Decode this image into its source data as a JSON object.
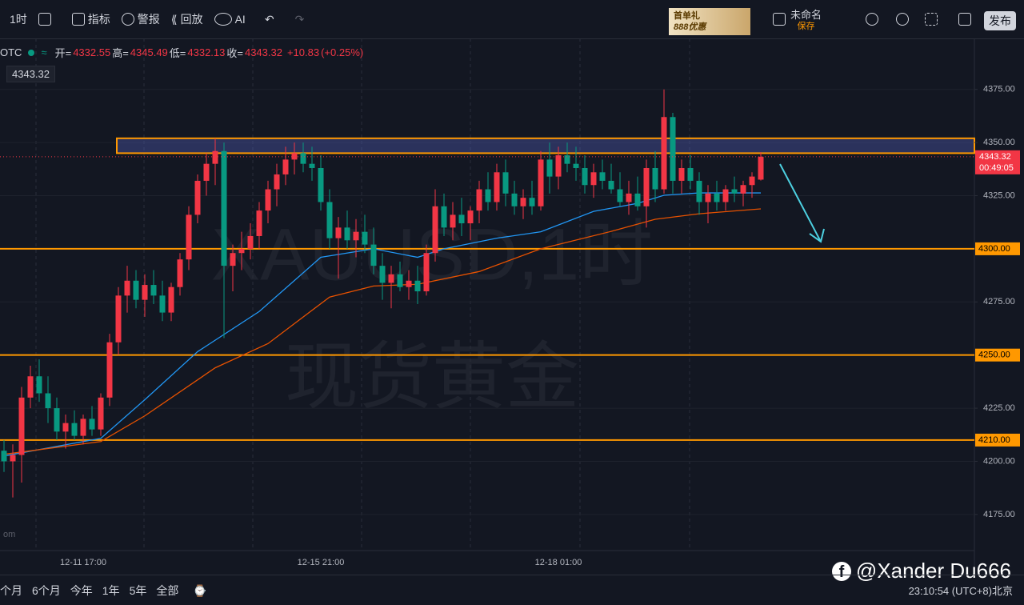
{
  "chart_data": {
    "type": "candlestick",
    "watermark": "XAUUSD,1时",
    "watermark_sub": "现货黄金",
    "symbol": "OTC",
    "legend": {
      "open_key": "开=",
      "high_key": "高=",
      "low_key": "低=",
      "close_key": "收=",
      "change": "+10.83",
      "change_pct": "(+0.25%)"
    },
    "up_color": "#f23645",
    "down_color": "#089981",
    "categories": [
      null,
      null,
      null,
      null,
      null,
      null,
      null,
      null,
      null,
      "12-11 17:00",
      null,
      null,
      null,
      null,
      null,
      null,
      null,
      null,
      null,
      null,
      null,
      null,
      null,
      null,
      null,
      null,
      null,
      null,
      null,
      null,
      null,
      null,
      null,
      null,
      null,
      null,
      "12-15 21:00",
      null,
      null,
      null,
      null,
      null,
      null,
      null,
      null,
      null,
      null,
      null,
      null,
      null,
      null,
      null,
      null,
      null,
      null,
      null,
      null,
      null,
      null,
      null,
      null,
      null,
      null,
      "12-18 01:00",
      null,
      null,
      null,
      null,
      null,
      null,
      null,
      null,
      null,
      null,
      null,
      null,
      null,
      null,
      null,
      null,
      null,
      null,
      null,
      null,
      null,
      null,
      null
    ],
    "open": [
      4205,
      4200,
      4203,
      4230,
      4240,
      4232,
      4225,
      4214,
      4218,
      4212,
      4220,
      4215,
      4230,
      4256,
      4278,
      4285,
      4276,
      4283,
      4278,
      4270,
      4282,
      4295,
      4316,
      4332,
      4340,
      4346,
      4292,
      4298,
      4300,
      4306,
      4318,
      4328,
      4335,
      4342,
      4345,
      4340,
      4338,
      4322,
      4305,
      4310,
      4304,
      4308,
      4302,
      4292,
      4284,
      4288,
      4282,
      4285,
      4280,
      4298,
      4320,
      4310,
      4316,
      4312,
      4318,
      4328,
      4322,
      4336,
      4326,
      4320,
      4324,
      4320,
      4342,
      4334,
      4344,
      4340,
      4338,
      4330,
      4336,
      4332,
      4328,
      4322,
      4326,
      4320,
      4338,
      4328,
      4362,
      4332,
      4338,
      4332,
      4322,
      4326,
      4322,
      4328,
      4326,
      4330,
      4332.55
    ],
    "high": [
      4210,
      4208,
      4235,
      4245,
      4248,
      4240,
      4230,
      4222,
      4224,
      4222,
      4226,
      4232,
      4260,
      4282,
      4292,
      4290,
      4288,
      4290,
      4285,
      4284,
      4298,
      4320,
      4335,
      4345,
      4352,
      4350,
      4302,
      4308,
      4312,
      4322,
      4332,
      4340,
      4348,
      4350,
      4350,
      4348,
      4344,
      4328,
      4315,
      4318,
      4314,
      4316,
      4310,
      4298,
      4292,
      4294,
      4290,
      4292,
      4302,
      4328,
      4326,
      4322,
      4324,
      4320,
      4332,
      4336,
      4340,
      4342,
      4332,
      4328,
      4332,
      4346,
      4350,
      4348,
      4350,
      4348,
      4344,
      4340,
      4342,
      4340,
      4336,
      4332,
      4334,
      4342,
      4346,
      4375,
      4364,
      4342,
      4344,
      4336,
      4330,
      4332,
      4330,
      4334,
      4332,
      4336,
      4345.49
    ],
    "low": [
      4195,
      4183,
      4190,
      4225,
      4228,
      4218,
      4210,
      4206,
      4210,
      4208,
      4212,
      4212,
      4226,
      4250,
      4270,
      4272,
      4268,
      4274,
      4266,
      4266,
      4278,
      4290,
      4312,
      4325,
      4330,
      4258,
      4280,
      4290,
      4295,
      4300,
      4312,
      4320,
      4330,
      4335,
      4336,
      4332,
      4318,
      4300,
      4286,
      4300,
      4296,
      4298,
      4288,
      4276,
      4272,
      4280,
      4276,
      4274,
      4278,
      4294,
      4306,
      4304,
      4306,
      4304,
      4312,
      4318,
      4318,
      4320,
      4316,
      4314,
      4316,
      4318,
      4326,
      4328,
      4336,
      4332,
      4326,
      4324,
      4328,
      4326,
      4320,
      4316,
      4318,
      4310,
      4322,
      4326,
      4326,
      4326,
      4328,
      4316,
      4312,
      4318,
      4318,
      4322,
      4320,
      4324,
      4332.13
    ],
    "close": [
      4200,
      4203,
      4230,
      4240,
      4232,
      4225,
      4214,
      4218,
      4212,
      4220,
      4215,
      4230,
      4256,
      4278,
      4285,
      4276,
      4283,
      4278,
      4270,
      4282,
      4295,
      4316,
      4332,
      4340,
      4346,
      4292,
      4298,
      4300,
      4306,
      4318,
      4328,
      4335,
      4342,
      4345,
      4340,
      4338,
      4322,
      4305,
      4310,
      4304,
      4308,
      4302,
      4292,
      4284,
      4288,
      4282,
      4285,
      4280,
      4298,
      4320,
      4310,
      4316,
      4312,
      4318,
      4328,
      4322,
      4336,
      4326,
      4320,
      4324,
      4320,
      4342,
      4334,
      4344,
      4340,
      4338,
      4330,
      4336,
      4332,
      4328,
      4322,
      4326,
      4320,
      4338,
      4328,
      4362,
      4332,
      4338,
      4332,
      4322,
      4326,
      4322,
      4328,
      4326,
      4330,
      4334,
      4343.32
    ],
    "series": [
      {
        "color": "#2196f3",
        "x": [
          0,
          11,
          16,
          22,
          29,
          36,
          42,
          47,
          50,
          56,
          61,
          67,
          72,
          75,
          79,
          86
        ],
        "values": [
          4202.5,
          4210.8,
          4229,
          4251.6,
          4270.5,
          4296,
          4300,
          4296,
          4300,
          4305,
          4308,
          4317.6,
          4321.4,
          4325.2,
          4326.3,
          4326.3
        ]
      },
      {
        "color": "#e65100",
        "x": [
          0,
          11,
          16,
          24,
          30,
          37,
          42,
          47,
          54,
          61,
          69,
          74,
          79,
          86
        ],
        "values": [
          4203.3,
          4209.3,
          4221.4,
          4244,
          4255.4,
          4277.3,
          4282.5,
          4283.3,
          4289.3,
          4300,
          4308.2,
          4313.9,
          4316.5,
          4318.8
        ]
      }
    ],
    "ylim": [
      4158,
      4399
    ],
    "yticks": [
      {
        "value": 4175,
        "label": "4175.00"
      },
      {
        "value": 4200,
        "label": "4200.00"
      },
      {
        "value": 4225,
        "label": "4225.00"
      },
      {
        "value": 4250,
        "label": "4250.00"
      },
      {
        "value": 4275,
        "label": "4275.00"
      },
      {
        "value": 4300,
        "label": "4300.00"
      },
      {
        "value": 4325,
        "label": "4325.00"
      },
      {
        "value": 4350,
        "label": "4350.00"
      },
      {
        "value": 4375,
        "label": "4375.00"
      }
    ],
    "grid": true,
    "levels": [
      {
        "value": 4300,
        "label": "4300.00"
      },
      {
        "value": 4250,
        "label": "4250.00"
      },
      {
        "value": 4210,
        "label": "4210.00"
      }
    ],
    "level_color": "#ff9800",
    "zone": {
      "low": 4345,
      "high": 4352
    },
    "countdown": "00:49:05"
  },
  "toolbar": {
    "interval": "1时",
    "indicators": "指标",
    "alerts": "警报",
    "replay": "回放",
    "ai": "AI",
    "promo_top": "首单礼",
    "promo_bottom": "888优惠",
    "layout_name": "未命名",
    "save": "保存",
    "publish": "发布"
  },
  "bottom_bar": {
    "ranges": [
      "个月",
      "6个月",
      "今年",
      "1年",
      "5年",
      "全部"
    ],
    "time": "23:10:54",
    "timezone": "(UTC+8)北京",
    "credit": "@Xander Du666",
    "source_cut": "om"
  }
}
